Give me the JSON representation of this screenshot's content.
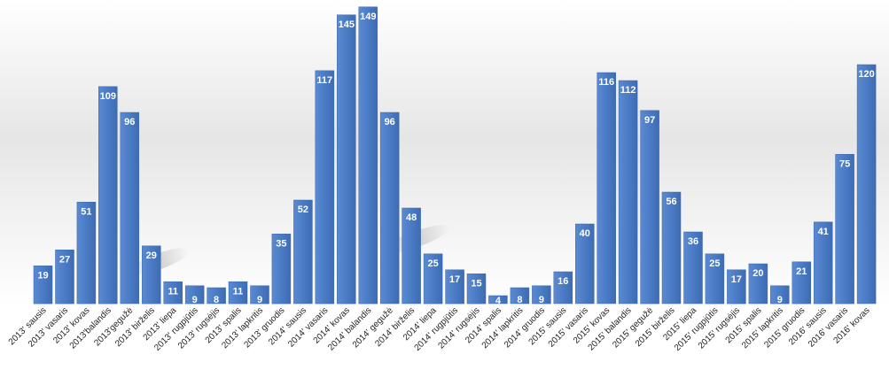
{
  "chart_data": {
    "type": "bar",
    "title": "",
    "xlabel": "",
    "ylabel": "",
    "ylim": [
      0,
      160
    ],
    "grid": false,
    "bar_color": "#4a7bc4",
    "label_color": "#ffffff",
    "categories": [
      "2013' sausis",
      "2013' vasaris",
      "2013' kovas",
      "2013'balandis",
      "2013'gegužė",
      "2013' birželis",
      "2013' liepa",
      "2013' rugpjūtis",
      "2013' rugsėjis",
      "2013' spalis",
      "2013' lapkritis",
      "2013' gruodis",
      "2014' sausis",
      "2014' vasaris",
      "2014' kovas",
      "2014' balandis",
      "2014' gegužė",
      "2014' birželis",
      "2014' liepa",
      "2014' rugpjūtis",
      "2014' rugsėjis",
      "2014' spalis",
      "2014' lapkritis",
      "2014' gruodis",
      "2015' sausis",
      "2015' vasaris",
      "2015' kovas",
      "2015' balandis",
      "2015' gegužė",
      "2015' birželis",
      "2015' liepa",
      "2015' rugpjūtis",
      "2015' rugsėjis",
      "2015' spalis",
      "2015' lapkritis",
      "2015' gruodis",
      "2016' sausis",
      "2016' vasaris",
      "2016' kovas"
    ],
    "values": [
      19,
      27,
      51,
      109,
      96,
      29,
      11,
      9,
      8,
      11,
      9,
      35,
      52,
      117,
      145,
      149,
      96,
      48,
      25,
      17,
      15,
      4,
      8,
      9,
      16,
      40,
      116,
      112,
      97,
      56,
      36,
      25,
      17,
      20,
      9,
      21,
      41,
      75,
      120
    ]
  }
}
